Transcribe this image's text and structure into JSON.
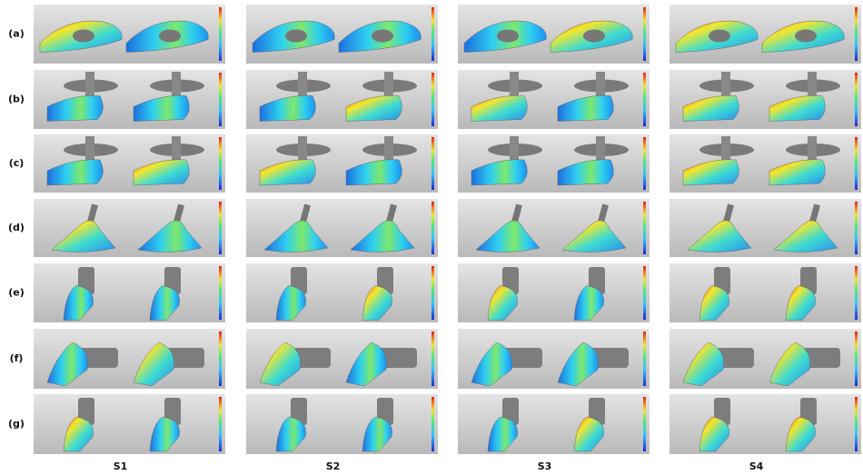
{
  "row_labels": [
    "(a)",
    "(b)",
    "(c)",
    "(d)",
    "(e)",
    "(f)",
    "(g)"
  ],
  "column_labels": [
    "S1",
    "S2",
    "S3",
    "S4"
  ]
}
